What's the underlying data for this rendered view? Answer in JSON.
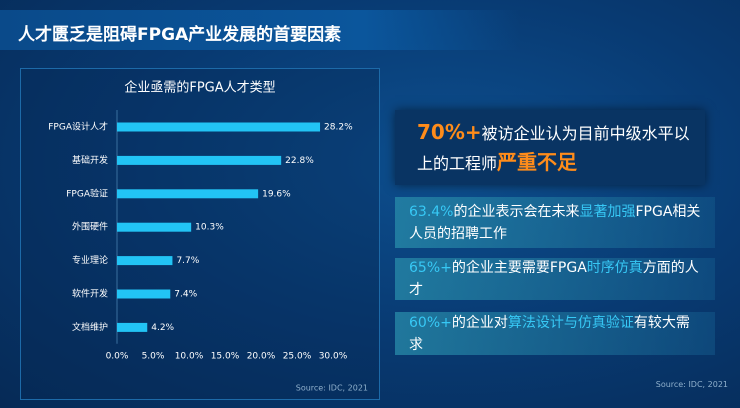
{
  "header": {
    "title": "人才匮乏是阻碍FPGA产业发展的首要因素"
  },
  "chart_data": {
    "type": "hbar",
    "title": "企业亟需的FPGA人才类型",
    "categories": [
      "FPGA设计人才",
      "基础开发",
      "FPGA验证",
      "外围硬件",
      "专业理论",
      "软件开发",
      "文档维护"
    ],
    "values": [
      28.2,
      22.8,
      19.6,
      10.3,
      7.7,
      7.4,
      4.2
    ],
    "value_labels": [
      "28.2%",
      "22.8%",
      "19.6%",
      "10.3%",
      "7.7%",
      "7.4%",
      "4.2%"
    ],
    "color": "#22c4f5",
    "xlim": [
      0,
      30
    ],
    "xticks": [
      {
        "value": 0,
        "label": "0.0%"
      },
      {
        "value": 5,
        "label": "5.0%"
      },
      {
        "value": 10,
        "label": "10.0%"
      },
      {
        "value": 15,
        "label": "15.0%"
      },
      {
        "value": 20,
        "label": "20.0%"
      },
      {
        "value": 25,
        "label": "25.0%"
      },
      {
        "value": 30,
        "label": "30.0%"
      }
    ],
    "source": "Source: IDC, 2021"
  },
  "callouts": [
    {
      "segments": [
        {
          "text": "70%+",
          "highlight": true
        },
        {
          "text": "被访企业认为目前中级水平以上的工程师",
          "highlight": false
        },
        {
          "text": "严重不足",
          "highlight": true
        }
      ]
    },
    {
      "segments": [
        {
          "text": "63.4%",
          "highlight": true
        },
        {
          "text": "的企业表示会在未来",
          "highlight": false
        },
        {
          "text": "显著加强",
          "highlight": true
        },
        {
          "text": "FPGA相关人员的招聘工作",
          "highlight": false
        }
      ]
    },
    {
      "segments": [
        {
          "text": "65%+",
          "highlight": true
        },
        {
          "text": "的企业主要需要FPGA",
          "highlight": false
        },
        {
          "text": "时序仿真",
          "highlight": true
        },
        {
          "text": "方面的人才",
          "highlight": false
        }
      ]
    },
    {
      "segments": [
        {
          "text": "60%+",
          "highlight": true
        },
        {
          "text": "的企业对",
          "highlight": false
        },
        {
          "text": "算法设计与仿真验证",
          "highlight": true
        },
        {
          "text": "有较大需求",
          "highlight": false
        }
      ]
    }
  ],
  "footer_source": "Source: IDC, 2021"
}
